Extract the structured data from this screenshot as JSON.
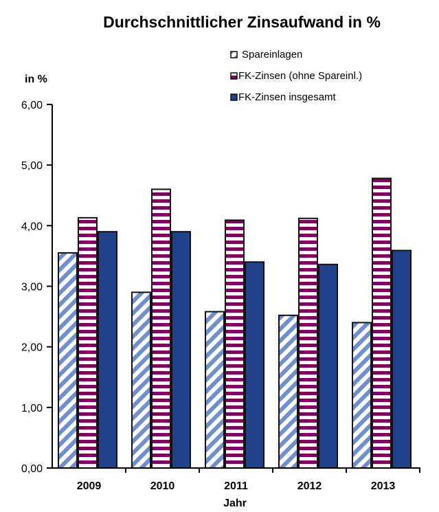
{
  "chart_data": {
    "type": "bar",
    "title": "Durchschnittlicher Zinsaufwand in %",
    "ylabel": "in %",
    "xlabel": "Jahr",
    "ylim": [
      0,
      6
    ],
    "yticks": [
      "0,00",
      "1,00",
      "2,00",
      "3,00",
      "4,00",
      "5,00",
      "6,00"
    ],
    "categories": [
      "2009",
      "2010",
      "2011",
      "2012",
      "2013"
    ],
    "legend_position": "top-right",
    "series": [
      {
        "name": "Spareinlagen",
        "values": [
          3.55,
          2.9,
          2.58,
          2.52,
          2.4
        ],
        "color": "#6f8fcf",
        "pattern": "diagonal"
      },
      {
        "name": "FK-Zinsen (ohne Spareinl.)",
        "values": [
          4.13,
          4.6,
          4.09,
          4.12,
          4.78
        ],
        "color": "#800060",
        "pattern": "horizontal"
      },
      {
        "name": "FK-Zinsen insgesamt",
        "values": [
          3.9,
          3.9,
          3.4,
          3.36,
          3.59
        ],
        "color": "#21418a",
        "pattern": "solid"
      }
    ]
  }
}
